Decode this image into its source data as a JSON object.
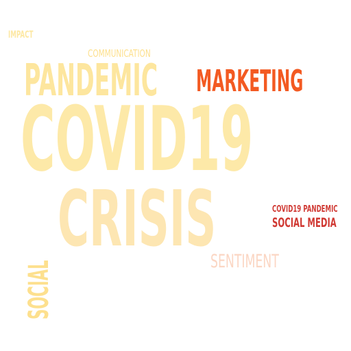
{
  "colors": {
    "background": "#ffffff",
    "pale_yellow": "#fde8a3",
    "light_yellow": "#fde08e",
    "orange": "#f35a22",
    "red": "#d03a34",
    "pink": "#fbd6c3",
    "pale_orange": "#fde6b2"
  },
  "words": [
    {
      "id": "impact",
      "text": "IMPACT",
      "color": "#fde8a3"
    },
    {
      "id": "communication",
      "text": "COMMUNICATION",
      "color": "#fde08e"
    },
    {
      "id": "pandemic",
      "text": "PANDEMIC",
      "color": "#fde69e"
    },
    {
      "id": "marketing",
      "text": "MARKETING",
      "color": "#f35a22"
    },
    {
      "id": "covid19",
      "text": "COVID19",
      "color": "#fde9a8"
    },
    {
      "id": "crisis",
      "text": "CRISIS",
      "color": "#fde6b2"
    },
    {
      "id": "covid19_pandemic",
      "text": "COVID19 PANDEMIC",
      "color": "#d03a34"
    },
    {
      "id": "social_media",
      "text": "SOCIAL MEDIA",
      "color": "#d03a34"
    },
    {
      "id": "sentiment",
      "text": "SENTIMENT",
      "color": "#fbd6c3"
    },
    {
      "id": "social",
      "text": "SOCIAL",
      "color": "#fde08e"
    }
  ]
}
